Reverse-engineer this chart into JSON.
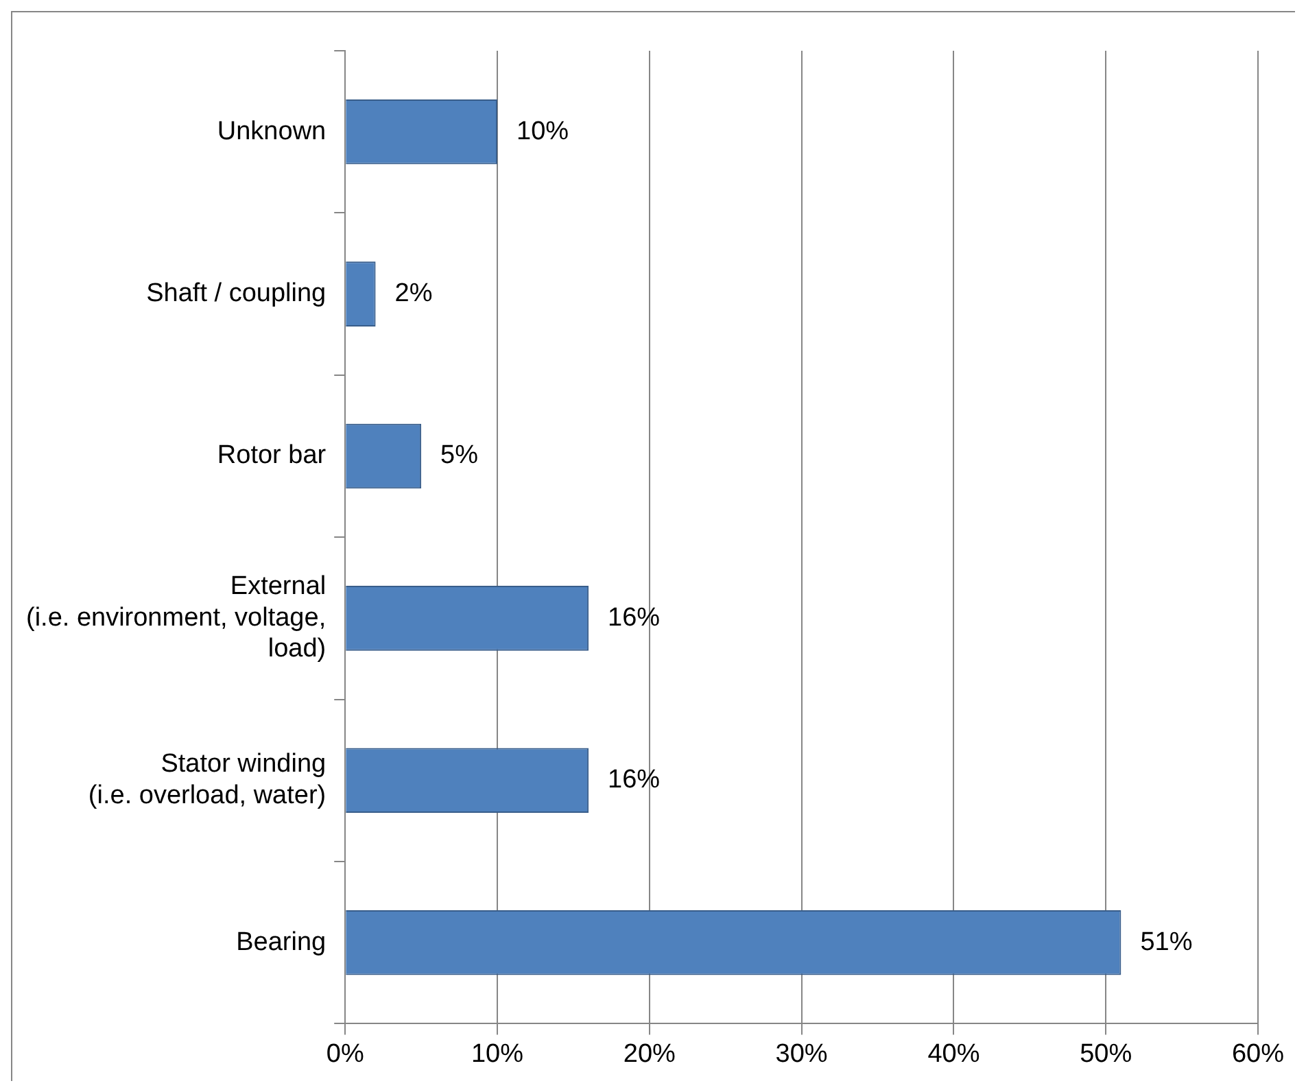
{
  "chart_data": {
    "type": "bar",
    "orientation": "horizontal",
    "categories": [
      "Unknown",
      "Shaft / coupling",
      "Rotor bar",
      "External (i.e. environment, voltage, load)",
      "Stator winding (i.e. overload, water)",
      "Bearing"
    ],
    "values": [
      10,
      2,
      5,
      16,
      16,
      51
    ],
    "value_labels": [
      "10%",
      "2%",
      "5%",
      "16%",
      "16%",
      "51%"
    ],
    "color": "#4f81bd",
    "xlim": [
      0,
      60
    ],
    "xticks": [
      {
        "value": 0,
        "label": "0%"
      },
      {
        "value": 10,
        "label": "10%"
      },
      {
        "value": 20,
        "label": "20%"
      },
      {
        "value": 30,
        "label": "30%"
      },
      {
        "value": 40,
        "label": "40%"
      },
      {
        "value": 50,
        "label": "50%"
      },
      {
        "value": 60,
        "label": "60%"
      }
    ],
    "grid": "x",
    "legend": false
  }
}
